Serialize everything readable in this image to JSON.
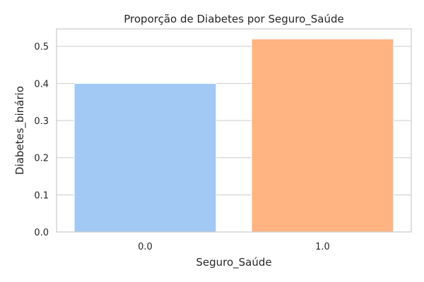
{
  "chart_data": {
    "type": "bar",
    "title": "Proporção de Diabetes por Seguro_Saúde",
    "xlabel": "Seguro_Saúde",
    "ylabel": "Diabetes_binário",
    "categories": [
      "0.0",
      "1.0"
    ],
    "values": [
      0.4,
      0.52
    ],
    "colors": [
      "#a1c9f4",
      "#ffb482"
    ],
    "ylim": [
      0,
      0.547
    ],
    "yticks": [
      0.0,
      0.1,
      0.2,
      0.3,
      0.4,
      0.5
    ],
    "ytick_labels": [
      "0.0",
      "0.1",
      "0.2",
      "0.3",
      "0.4",
      "0.5"
    ],
    "grid": "horizontal",
    "legend": "none"
  }
}
